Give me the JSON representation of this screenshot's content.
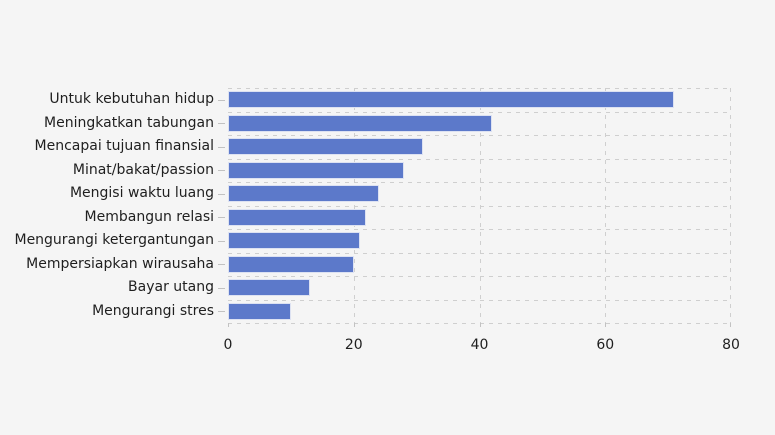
{
  "chart_data": {
    "type": "bar",
    "orientation": "horizontal",
    "title": "",
    "categories": [
      "Untuk kebutuhan hidup",
      "Meningkatkan tabungan",
      "Mencapai tujuan finansial",
      "Minat/bakat/passion",
      "Mengisi waktu luang",
      "Membangun relasi",
      "Mengurangi ketergantungan",
      "Mempersiapkan wirausaha",
      "Bayar utang",
      "Mengurangi stres"
    ],
    "values": [
      71,
      42,
      31,
      28,
      24,
      22,
      21,
      20,
      13,
      10
    ],
    "xlim": [
      0,
      80
    ],
    "x_ticks": [
      "0",
      "20",
      "40",
      "60",
      "80"
    ],
    "grid": "dashed",
    "legend": "none",
    "colors": {
      "bar": "#5c79ca",
      "background": "#f5f5f5",
      "gridline": "#cfcfcf",
      "text": "#1f1f1f"
    }
  }
}
